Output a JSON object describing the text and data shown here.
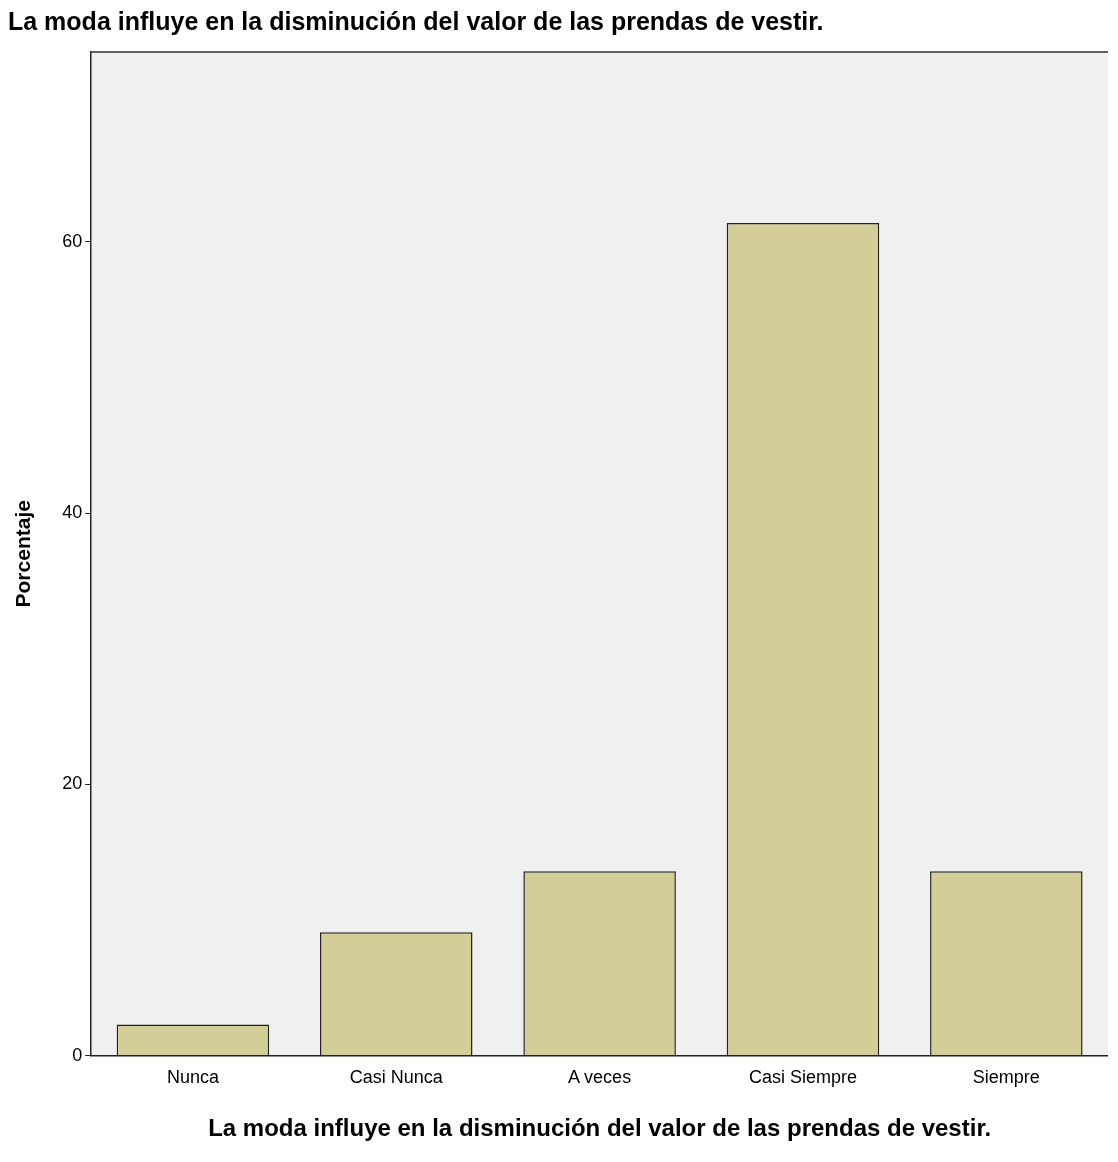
{
  "chart_data": {
    "type": "bar",
    "title": "La moda influye en la disminución del valor de las prendas de vestir.",
    "xlabel": "La moda influye en la disminución del valor de las prendas de vestir.",
    "ylabel": "Porcentaje",
    "categories": [
      "Nunca",
      "Casi Nunca",
      "A veces",
      "Casi Siempre",
      "Siempre"
    ],
    "values": [
      2.3,
      9.1,
      13.6,
      61.4,
      13.6
    ],
    "color": "#d3ce97",
    "ylim": [
      0,
      74
    ],
    "yticks": [
      0,
      20,
      40,
      60
    ],
    "grid": false,
    "legend": false
  }
}
